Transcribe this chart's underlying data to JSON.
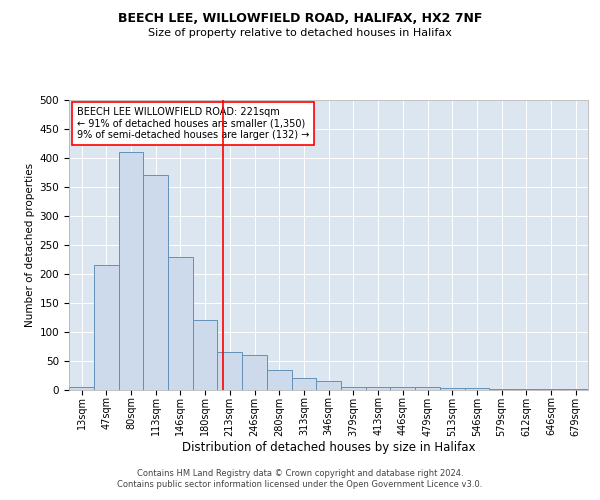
{
  "title1": "BEECH LEE, WILLOWFIELD ROAD, HALIFAX, HX2 7NF",
  "title2": "Size of property relative to detached houses in Halifax",
  "xlabel": "Distribution of detached houses by size in Halifax",
  "ylabel": "Number of detached properties",
  "bar_color": "#cddaeb",
  "bar_edge_color": "#6490b8",
  "background_color": "#dce6f0",
  "bin_labels": [
    "13sqm",
    "47sqm",
    "80sqm",
    "113sqm",
    "146sqm",
    "180sqm",
    "213sqm",
    "246sqm",
    "280sqm",
    "313sqm",
    "346sqm",
    "379sqm",
    "413sqm",
    "446sqm",
    "479sqm",
    "513sqm",
    "546sqm",
    "579sqm",
    "612sqm",
    "646sqm",
    "679sqm"
  ],
  "bin_edges": [
    13,
    47,
    80,
    113,
    146,
    180,
    213,
    246,
    280,
    313,
    346,
    379,
    413,
    446,
    479,
    513,
    546,
    579,
    612,
    646,
    679,
    712
  ],
  "bar_heights": [
    5,
    215,
    410,
    370,
    230,
    120,
    65,
    60,
    35,
    20,
    15,
    5,
    5,
    5,
    5,
    3,
    3,
    2,
    2,
    2,
    2
  ],
  "red_line_x": 221,
  "annotation_title": "BEECH LEE WILLOWFIELD ROAD: 221sqm",
  "annotation_line1": "← 91% of detached houses are smaller (1,350)",
  "annotation_line2": "9% of semi-detached houses are larger (132) →",
  "ylim": [
    0,
    500
  ],
  "yticks": [
    0,
    50,
    100,
    150,
    200,
    250,
    300,
    350,
    400,
    450,
    500
  ],
  "footer1": "Contains HM Land Registry data © Crown copyright and database right 2024.",
  "footer2": "Contains public sector information licensed under the Open Government Licence v3.0."
}
